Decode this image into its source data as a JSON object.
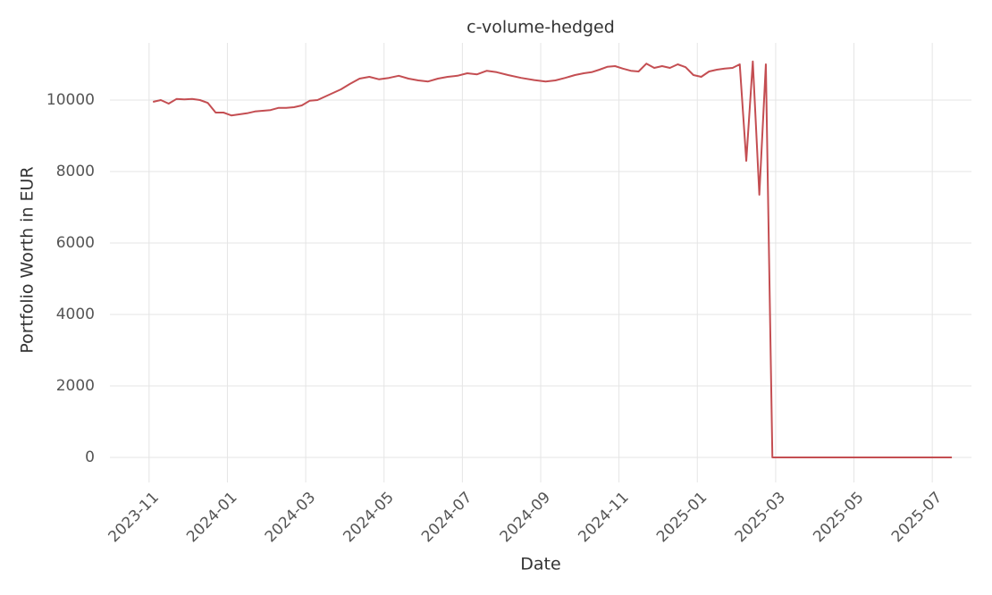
{
  "chart_data": {
    "type": "line",
    "title": "c-volume-hedged",
    "x_label": "Date",
    "y_label": "Portfolio Worth in EUR",
    "color": "#c44e52",
    "grid": true,
    "x": [
      "2023-11",
      "2023-11",
      "2023-11",
      "2023-11",
      "2023-11",
      "2023-12",
      "2023-12",
      "2023-12",
      "2023-12",
      "2023-12",
      "2024-01",
      "2024-01",
      "2024-01",
      "2024-01",
      "2024-01",
      "2024-02",
      "2024-02",
      "2024-02",
      "2024-02",
      "2024-02",
      "2024-03",
      "2024-03",
      "2024-03",
      "2024-03",
      "2024-03",
      "2024-04",
      "2024-04",
      "2024-04",
      "2024-04",
      "2024-05",
      "2024-05",
      "2024-05",
      "2024-05",
      "2024-06",
      "2024-06",
      "2024-06",
      "2024-06",
      "2024-07",
      "2024-07",
      "2024-07",
      "2024-07",
      "2024-08",
      "2024-08",
      "2024-08",
      "2024-09",
      "2024-09",
      "2024-09",
      "2024-09",
      "2024-10",
      "2024-10",
      "2024-10",
      "2024-10",
      "2024-10",
      "2024-11",
      "2024-11",
      "2024-11",
      "2024-11",
      "2024-11",
      "2024-12",
      "2024-12",
      "2024-12",
      "2024-12",
      "2024-12",
      "2025-01",
      "2025-01",
      "2025-01",
      "2025-01",
      "2025-01",
      "2025-02",
      "2025-02",
      "2025-02",
      "2025-02",
      "2025-02",
      "2025-02",
      "2025-03",
      "2025-04",
      "2025-05",
      "2025-06",
      "2025-07"
    ],
    "values": [
      9950,
      10000,
      9900,
      10030,
      10020,
      10030,
      10000,
      9920,
      9650,
      9650,
      9570,
      9600,
      9630,
      9680,
      9700,
      9720,
      9780,
      9780,
      9800,
      9850,
      9980,
      10000,
      10100,
      10200,
      10300,
      10450,
      10600,
      10650,
      10580,
      10620,
      10680,
      10600,
      10550,
      10520,
      10600,
      10650,
      10680,
      10750,
      10720,
      10820,
      10780,
      10700,
      10620,
      10560,
      10520,
      10550,
      10620,
      10700,
      10750,
      10780,
      10850,
      10930,
      10950,
      10880,
      10820,
      10800,
      11020,
      10900,
      10950,
      10900,
      11000,
      10920,
      10700,
      10650,
      10800,
      10850,
      10880,
      10900,
      11000,
      8300,
      11080,
      7350,
      11000,
      0,
      0,
      0,
      0,
      0,
      0
    ],
    "xlim": [
      "2023-10",
      "2025-08"
    ],
    "xticks": [
      "2023-11",
      "2024-01",
      "2024-03",
      "2024-05",
      "2024-07",
      "2024-09",
      "2024-11",
      "2025-01",
      "2025-03",
      "2025-05",
      "2025-07"
    ],
    "ylim": [
      -700,
      11600
    ],
    "yticks": [
      0,
      2000,
      4000,
      6000,
      8000,
      10000
    ]
  }
}
